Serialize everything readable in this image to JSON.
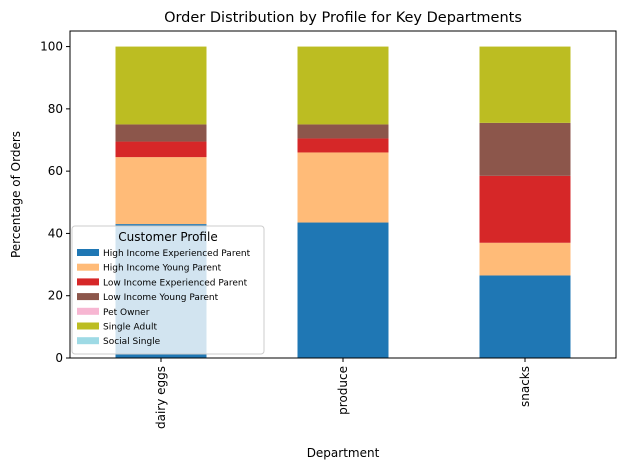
{
  "chart_data": {
    "type": "bar",
    "stacked": true,
    "title": "Order Distribution by Profile for Key Departments",
    "xlabel": "Department",
    "ylabel": "Percentage of Orders",
    "categories": [
      "dairy eggs",
      "produce",
      "snacks"
    ],
    "ylim": [
      0,
      105
    ],
    "yticks": [
      0,
      20,
      40,
      60,
      80,
      100
    ],
    "grid": false,
    "legend": {
      "title": "Customer Profile",
      "position": "lower-left"
    },
    "series": [
      {
        "name": "High Income Experienced Parent",
        "color": "#1f77b4",
        "values": [
          43.0,
          43.5,
          26.5
        ]
      },
      {
        "name": "High Income Young Parent",
        "color": "#ffbb78",
        "values": [
          21.5,
          22.5,
          10.5
        ]
      },
      {
        "name": "Low Income Experienced Parent",
        "color": "#d62728",
        "values": [
          5.0,
          4.5,
          21.5
        ]
      },
      {
        "name": "Low Income Young Parent",
        "color": "#8c564b",
        "values": [
          5.5,
          4.5,
          17.0
        ]
      },
      {
        "name": "Pet Owner",
        "color": "#f7b6d2",
        "values": [
          0,
          0,
          0
        ]
      },
      {
        "name": "Single Adult",
        "color": "#bcbd22",
        "values": [
          25.0,
          25.0,
          24.5
        ]
      },
      {
        "name": "Social Single",
        "color": "#9edae5",
        "values": [
          0,
          0,
          0
        ]
      }
    ]
  }
}
